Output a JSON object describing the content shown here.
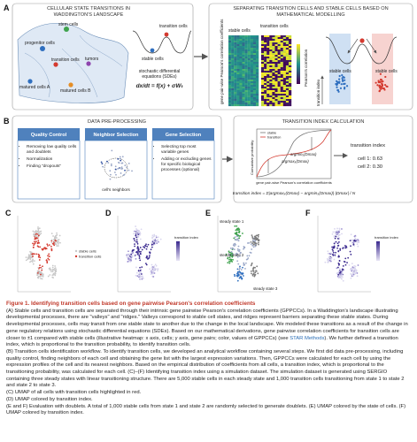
{
  "panel_a": {
    "label": "A",
    "left_title_lines": [
      "CELLULAR STATE TRANSITIONS IN",
      "WADDINGTON'S LANDSCAPE"
    ],
    "landscape_labels": [
      "stem cells",
      "progenitor cells",
      "transition cells",
      "tumors",
      "matured cells A",
      "matured cells B"
    ],
    "inset_labels": [
      "transition cells",
      "stable cells"
    ],
    "sde_lines": [
      "stochastic differential",
      "equations (SDEs)"
    ],
    "equation": "dx/dt = f(x) + σWₜ",
    "right_title_lines": [
      "SEPARATING TRANSITION CELLS AND STABLE CELLS BASED ON",
      "MATHEMATICAL MODELLING"
    ],
    "heatmap_labels": [
      "stable cells",
      "transition cells"
    ],
    "heatmap_axis": "gene pair-wise Pearson's correlation coefficients",
    "colorbar_label": "Pearson's correlation",
    "right_labels": [
      "stable cells",
      "stable cells"
    ],
    "index_label": "transition index"
  },
  "panel_b": {
    "label": "B",
    "pre_title": "DATA PRE-PROCESSING",
    "boxes": [
      {
        "title": "Quality Control",
        "bullets": [
          "Removing low quality cells and doublets",
          "Normalization",
          "Finding \"dropouts\""
        ]
      },
      {
        "title": "Neighbor Selection",
        "note": "cell's neighbors"
      },
      {
        "title": "Gene Selection",
        "bullets": [
          "Selecting top most variable genes",
          "Adding or excluding genes for specific biological processes (optional)"
        ]
      }
    ],
    "calc_title": "TRANSITION INDEX CALCULATION",
    "legend": [
      "stable",
      "transition"
    ],
    "plot_ylabel": "Cumulative probability",
    "plot_xlabel": "gene pair-wise Pearson's correlation coefficients",
    "annotations": [
      "argmaxₓ(Dmax)",
      "argminₓ(Dmax)"
    ],
    "formula": "transition index = Σ|argmaxₓ(Dmax) − argminₓ(Dmax)|·|Dmax| / N",
    "result_title": "transition index",
    "results": [
      "cell 1: 0.63",
      "cell 2: 0.30"
    ]
  },
  "panels_cf": {
    "labels": [
      "C",
      "D",
      "E",
      "F"
    ],
    "c_legend": [
      "stable cells",
      "transition cells"
    ],
    "d_legend": "transition index",
    "e_labels": [
      "steady state 1",
      "steady state 2",
      "steady state 3"
    ],
    "f_legend": "transition index"
  },
  "caption": {
    "title": "Figure 1. Identifying transition cells based on gene pairwise Pearson's correlation coefficients",
    "a_pre": "(A) Stable cells and transition cells are separated through their intrinsic gene pairwise Pearson's correlation coefficients (GPPCCs). In a Waddington's landscape illustrating developmental processes, there are \"valleys\" and \"ridges.\" Valleys correspond to stable cell states, and ridges represent barriers separating these stable states. During developmental processes, cells may transit from one stable state to another due to the change in the local landscape. We modeled these transitions as a result of the change in gene regulatory relations using stochastic differential equations (SDEs). Based on our mathematical derivations, gene pairwise correlation coefficients for transition cells are closer to ±1 compared with stable cells (illustrative heatmap: x axis, cells; y axis, gene pairs; color, values of GPPCCs) (see ",
    "a_link": "STAR Methods",
    "a_post": "). We further defined a transition index, which is proportional to the transition probability, to identify transition cells.",
    "b": "(B) Transition cells identification workflow. To identify transition cells, we developed an analytical workflow containing several steps. We first did data pre-processing, including quality control, finding neighbors of each cell and obtaining the gene list with the largest expression variations. Then, GPPCCs were calculated for each cell by using the expression profiles of the cell and its nearest neighbors. Based on the empirical distribution of coefficients from all cells, a transition index, which is proportional to the transitioning probability, was calculated for each cell. (C)–(F) Identifying transition index using a simulation dataset. The simulation dataset is generated using SERGIO containing three steady states with linear transitioning structure. There are 5,000 stable cells in each steady state and 1,000 transition cells transitioning from state 1 to state 2 and state 2 to state 3.",
    "c": "(C) UMAP of all cells with transition cells highlighted in red.",
    "d": "(D) UMAP colored by transition index.",
    "ef": "(E and F) Evaluation with doublets. A total of 1,000 stable cells from state 1 and state 2 are randomly selected to generate doublets. (E) UMAP colored by the state of cells. (F) UMAP colored by transition index."
  }
}
